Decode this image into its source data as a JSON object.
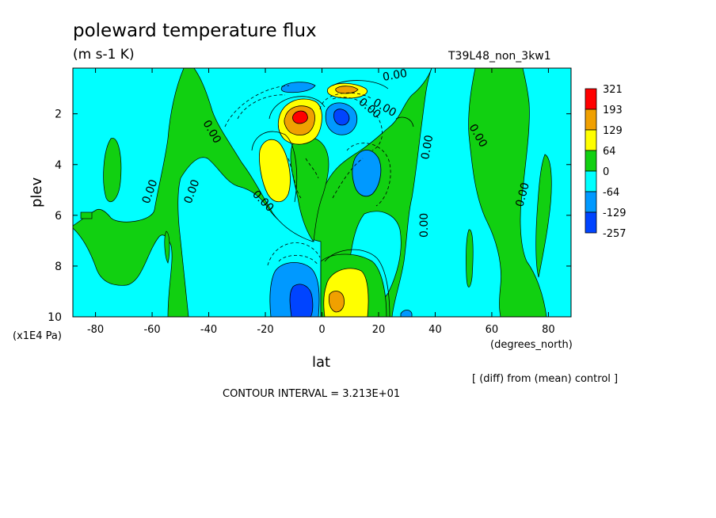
{
  "chart_data": {
    "type": "heatmap",
    "title": "poleward temperature flux",
    "units": "(m s-1 K)",
    "run_label": "T39L48_non_3kw1",
    "xlabel": "lat",
    "x_unit": "(degrees_north)",
    "ylabel": "plev",
    "y_unit": "(x1E4 Pa)",
    "note": "[ (diff) from (mean) control ]",
    "contour_interval": "CONTOUR INTERVAL = 3.213E+01",
    "xlim": [
      -88,
      88
    ],
    "ylim": [
      10,
      0.2
    ],
    "xticks": [
      -80,
      -60,
      -40,
      -20,
      0,
      20,
      40,
      60,
      80
    ],
    "yticks": [
      2,
      4,
      6,
      8,
      10
    ],
    "colorbar": {
      "labels": [
        "321",
        "193",
        "129",
        "64",
        "0",
        "-64",
        "-129",
        "-257"
      ],
      "colors": [
        "#ff0000",
        "#f0a000",
        "#ffff00",
        "#11d011",
        "#00ffff",
        "#0099ff",
        "#0044ff"
      ]
    },
    "contour_labels": [
      "0.00",
      "0.00",
      "0.00",
      "0.00",
      "0.00",
      "0.00",
      "0.00",
      "0.00",
      "0.00",
      "0.00",
      "0.00"
    ],
    "features": [
      {
        "lat": -8,
        "plev": 2.0,
        "value": 290
      },
      {
        "lat": -14,
        "plev": 4.0,
        "value": 80
      },
      {
        "lat": 8,
        "plev": 1.0,
        "value": 120
      },
      {
        "lat": 8,
        "plev": 2.0,
        "value": -140
      },
      {
        "lat": 18,
        "plev": 4.0,
        "value": -90
      },
      {
        "lat": -10,
        "plev": 9.2,
        "value": -150
      },
      {
        "lat": 7,
        "plev": 9.3,
        "value": 200
      },
      {
        "lat": 13,
        "plev": 9.0,
        "value": 90
      }
    ]
  },
  "colors": {
    "positive_high": "#ff0000",
    "positive_mid": "#f0a000",
    "positive_low": "#ffff00",
    "near_zero_pos": "#11d011",
    "near_zero_neg": "#00ffff",
    "negative_mid": "#0099ff",
    "negative_high": "#0044ff"
  }
}
